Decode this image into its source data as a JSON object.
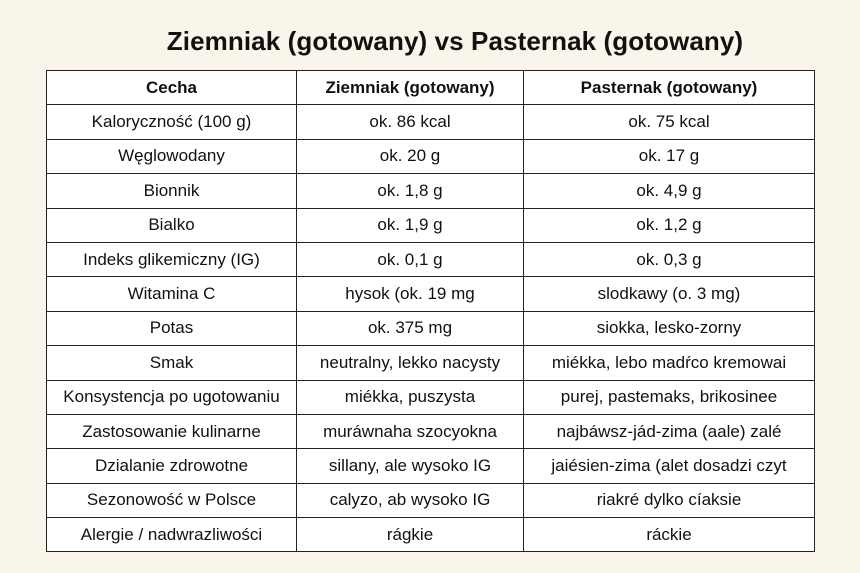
{
  "title": "Ziemniak (gotowany) vs Pasternak (gotowany)",
  "table": {
    "headers": [
      "Cecha",
      "Ziemniak (gotowany)",
      "Pasternak (gotowany)"
    ],
    "rows": [
      [
        "Kaloryczność (100 g)",
        "ok. 86 kcal",
        "ok. 75 kcal"
      ],
      [
        "Węglowodany",
        "ok. 20 g",
        "ok. 17 g"
      ],
      [
        "Bionnik",
        "ok. 1,8 g",
        "ok. 4,9 g"
      ],
      [
        "Bialko",
        "ok. 1,9 g",
        "ok. 1,2 g"
      ],
      [
        "Indeks glikemiczny (IG)",
        "ok. 0,1 g",
        "ok. 0,3 g"
      ],
      [
        "Witamina C",
        "hysok (ok. 19 mg",
        "slodkawy (o. 3 mg)"
      ],
      [
        "Potas",
        "ok. 375 mg",
        "siokka, lesko-zorny"
      ],
      [
        "Smak",
        "neutralny, lekko nacysty",
        "miékka, lebo madŕco kremowai"
      ],
      [
        "Konsystencja po ugotowaniu",
        "miékka, puszysta",
        "purej, pastemaks, brikosinee"
      ],
      [
        "Zastosowanie kulinarne",
        "muráwnaha szocyokna",
        "najbáwsz-jád-zima (aale) zalé"
      ],
      [
        "Dzialanie zdrowotne",
        "sillany, ale wysoko IG",
        "jaiésien-zima (alet dosadzi czyt"
      ],
      [
        "Sezonowość w Polsce",
        "calyzo, ab wysoko IG",
        "riakré dylko cíaksie"
      ],
      [
        "Alergie / nadwrazliwości",
        "rágkie",
        "ráckie"
      ]
    ]
  }
}
